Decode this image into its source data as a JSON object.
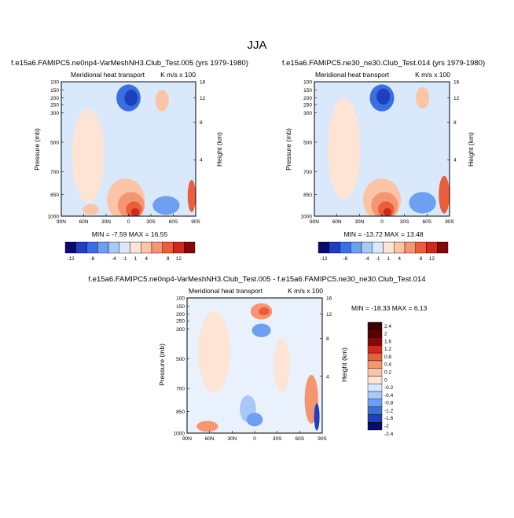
{
  "figure": {
    "title": "JJA"
  },
  "palettes": {
    "abs": [
      "#0b0a6e",
      "#1f3fbf",
      "#3a6fe0",
      "#6f9ff0",
      "#a8c8f5",
      "#d9e9fb",
      "#fde4d5",
      "#fbc4a6",
      "#f59673",
      "#ea5e3c",
      "#cc2a1c",
      "#7f0a0a"
    ],
    "diff": [
      "#0b0a6e",
      "#1f3fbf",
      "#3a6fe0",
      "#6f9ff0",
      "#a8c8f5",
      "#d9e9fb",
      "#fde4d5",
      "#fbc4a6",
      "#f59673",
      "#ea5e3c",
      "#cc2a1c",
      "#7f0a0a",
      "#5a0000",
      "#3d0000"
    ]
  },
  "chart_data": [
    {
      "type": "heatmap",
      "title": "f.e15a6.FAMIPC5.ne0np4-VarMeshNH3.Club_Test.005 (yrs 1979-1980)",
      "subtitle_left": "Meridional heat transport",
      "subtitle_right": "K m/s x 100",
      "ylabel": "Pressure (mb)",
      "ylabel_right": "Height (km)",
      "x_ticks": [
        "90N",
        "60N",
        "30N",
        "0",
        "30S",
        "60S",
        "90S"
      ],
      "y_ticks": [
        "100",
        "150",
        "200",
        "250",
        "300",
        "500",
        "700",
        "850",
        "1000"
      ],
      "y_ticks_right": [
        "16",
        "12",
        "8",
        "4"
      ],
      "min_max": "MIN =  -7.59  MAX =  16.55",
      "colorbar_labels": [
        "-12",
        "-8",
        "-4",
        "-1",
        "1",
        "4",
        "8",
        "12"
      ],
      "grid": false
    },
    {
      "type": "heatmap",
      "title": "f.e15a6.FAMIPC5.ne30_ne30.Club_Test.014 (yrs 1979-1980)",
      "subtitle_left": "Meridional heat transport",
      "subtitle_right": "K m/s x 100",
      "ylabel": "Pressure (mb)",
      "ylabel_right": "Height (km)",
      "x_ticks": [
        "90N",
        "60N",
        "30N",
        "0",
        "30S",
        "60S",
        "90S"
      ],
      "y_ticks": [
        "100",
        "150",
        "200",
        "250",
        "300",
        "500",
        "700",
        "850",
        "1000"
      ],
      "y_ticks_right": [
        "16",
        "12",
        "8",
        "4"
      ],
      "min_max": "MIN = -13.72  MAX =  13.48",
      "colorbar_labels": [
        "-12",
        "-8",
        "-4",
        "-1",
        "1",
        "4",
        "8",
        "12"
      ],
      "grid": false
    },
    {
      "type": "heatmap",
      "title": "f.e15a6.FAMIPC5.ne0np4-VarMeshNH3.Club_Test.005 - f.e15a6.FAMIPC5.ne30_ne30.Club_Test.014",
      "subtitle_left": "Meridional heat transport",
      "subtitle_right": "K m/s x 100",
      "ylabel": "Pressure (mb)",
      "ylabel_right": "Height (km)",
      "x_ticks": [
        "90N",
        "60N",
        "30N",
        "0",
        "30S",
        "60S",
        "90S"
      ],
      "y_ticks": [
        "100",
        "150",
        "200",
        "250",
        "300",
        "500",
        "700",
        "850",
        "1000"
      ],
      "y_ticks_right": [
        "16",
        "12",
        "8",
        "4"
      ],
      "min_max": "MIN = -18.33  MAX =   6.13",
      "colorbar_labels": [
        "2.4",
        "2",
        "1.6",
        "1.2",
        "0.8",
        "0.4",
        "0.2",
        "0",
        "-0.2",
        "-0.4",
        "-0.8",
        "-1.2",
        "-1.6",
        "-2",
        "-2.4"
      ],
      "grid": false
    }
  ]
}
